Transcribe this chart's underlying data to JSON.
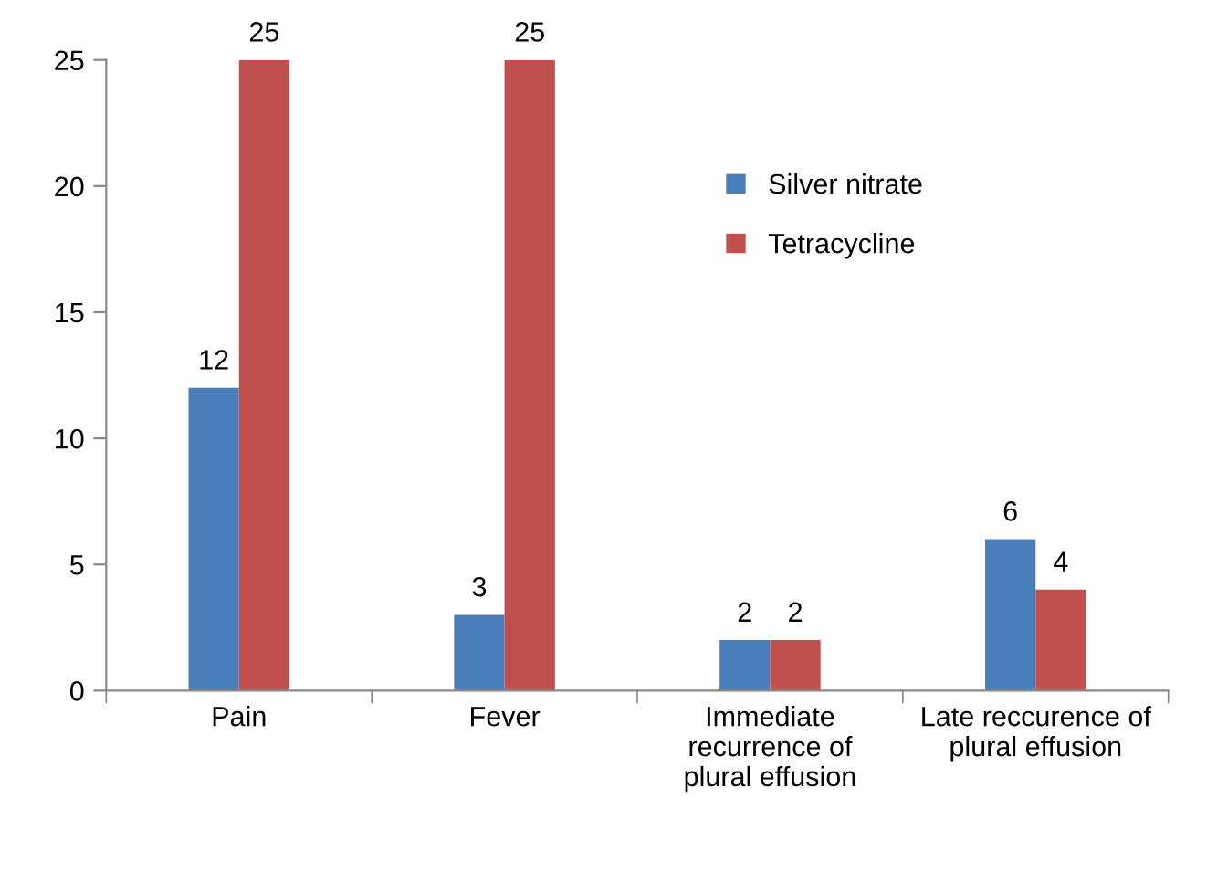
{
  "chart_data": {
    "type": "bar",
    "categories": [
      "Pain",
      "Fever",
      "Immediate\nrecurrence of\nplural effusion",
      "Late reccurence of\nplural effusion"
    ],
    "series": [
      {
        "name": "Silver nitrate",
        "color": "#4a7ebb",
        "values": [
          12,
          3,
          2,
          6
        ]
      },
      {
        "name": "Tetracycline",
        "color": "#c0504d",
        "values": [
          25,
          25,
          2,
          4
        ]
      }
    ],
    "ylim": [
      0,
      25
    ],
    "yticks": [
      0,
      5,
      10,
      15,
      20,
      25
    ],
    "data_labels": true,
    "grid": false,
    "legend": "top right"
  }
}
